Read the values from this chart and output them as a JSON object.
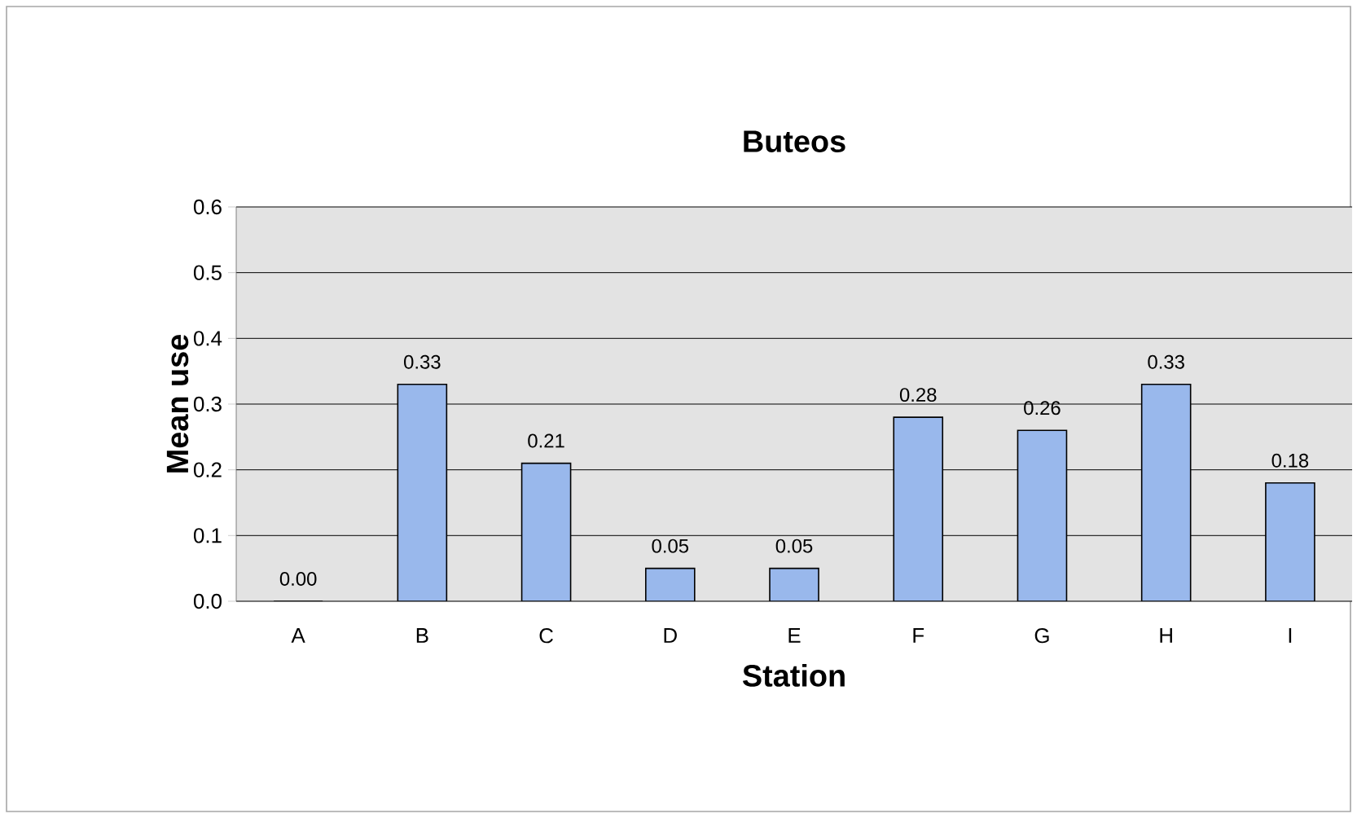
{
  "chart_data": {
    "type": "bar",
    "title": "Buteos",
    "xlabel": "Station",
    "ylabel": "Mean use",
    "categories": [
      "A",
      "B",
      "C",
      "D",
      "E",
      "F",
      "G",
      "H",
      "I"
    ],
    "values": [
      0.0,
      0.33,
      0.21,
      0.05,
      0.05,
      0.28,
      0.26,
      0.33,
      0.18
    ],
    "value_labels": [
      "0.00",
      "0.33",
      "0.21",
      "0.05",
      "0.05",
      "0.28",
      "0.26",
      "0.33",
      "0.18"
    ],
    "color": "#99b8ec",
    "ylim": [
      0,
      0.6
    ],
    "yticks": [
      {
        "value": 0,
        "label": "0.0"
      },
      {
        "value": 0.1,
        "label": "0.1"
      },
      {
        "value": 0.2,
        "label": "0.2"
      },
      {
        "value": 0.3,
        "label": "0.3"
      },
      {
        "value": 0.4,
        "label": "0.4"
      },
      {
        "value": 0.5,
        "label": "0.5"
      },
      {
        "value": 0.6,
        "label": "0.6"
      }
    ],
    "grid": "y"
  }
}
